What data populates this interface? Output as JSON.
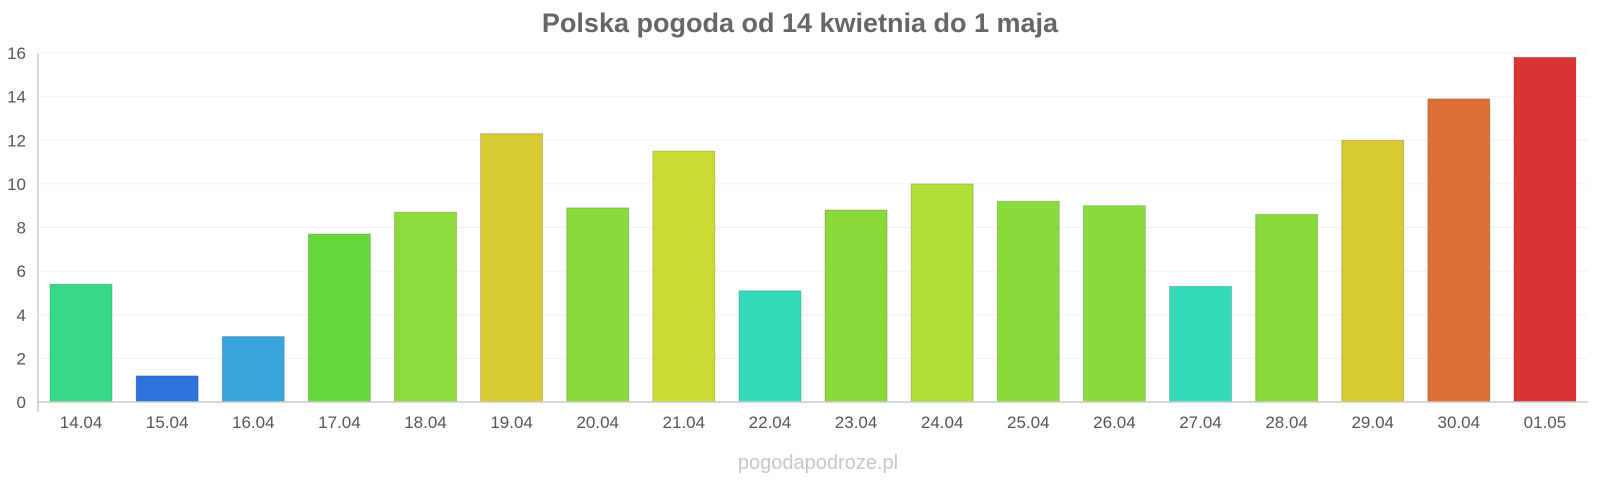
{
  "chart_data": {
    "type": "bar",
    "title": "Polska pogoda od 14 kwietnia do 1 maja",
    "xlabel": "",
    "ylabel": "",
    "ylim": [
      0,
      16
    ],
    "yticks": [
      0,
      2,
      4,
      6,
      8,
      10,
      12,
      14,
      16
    ],
    "grid": true,
    "legend": "none",
    "categories": [
      "14.04",
      "15.04",
      "16.04",
      "17.04",
      "18.04",
      "19.04",
      "20.04",
      "21.04",
      "22.04",
      "23.04",
      "24.04",
      "25.04",
      "26.04",
      "27.04",
      "28.04",
      "29.04",
      "30.04",
      "01.05"
    ],
    "values": [
      5.4,
      1.2,
      3.0,
      7.7,
      8.7,
      12.3,
      8.9,
      11.5,
      5.1,
      8.8,
      10.0,
      9.2,
      9.0,
      5.3,
      8.6,
      12.0,
      13.9,
      15.8
    ],
    "colors": [
      "#38d986",
      "#2f72de",
      "#36a6db",
      "#65d83c",
      "#8cdb3a",
      "#d8c832",
      "#88db3a",
      "#cadc33",
      "#33dbb8",
      "#8adb3a",
      "#aede37",
      "#88db3a",
      "#88db3a",
      "#33dbb8",
      "#8adb3a",
      "#d8c832",
      "#dd7034",
      "#dc3434"
    ]
  },
  "watermark": "pogodapodroze.pl"
}
